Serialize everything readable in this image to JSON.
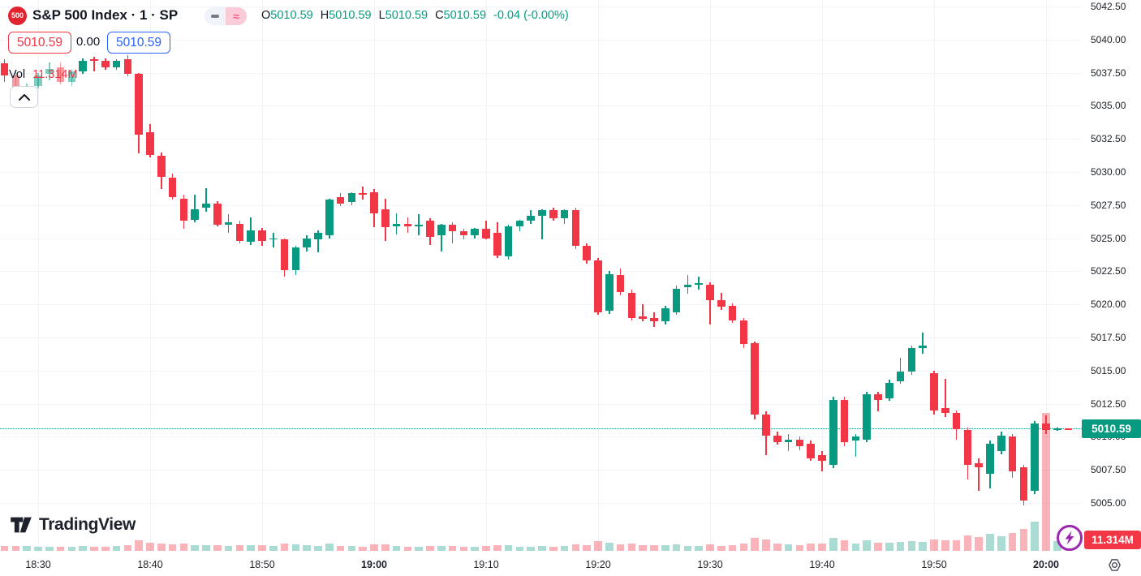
{
  "header": {
    "symbol_badge": "500",
    "title": "S&P 500 Index · 1 · SP",
    "ohlc": {
      "o_label": "O",
      "o": "5010.59",
      "h_label": "H",
      "h": "5010.59",
      "l_label": "L",
      "l": "5010.59",
      "c_label": "C",
      "c": "5010.59",
      "change": "-0.04 (-0.00%)"
    },
    "sell_price": "5010.59",
    "spread": "0.00",
    "buy_price": "5010.59",
    "vol_label": "Vol",
    "vol_value": "11.314M"
  },
  "labels": {
    "current_price": "5010.59",
    "volume_badge": "11.314M"
  },
  "footer": {
    "logo_text": "TradingView"
  },
  "colors": {
    "up": "#089981",
    "down": "#f23645",
    "vol_up": "rgba(8,153,129,0.34)",
    "vol_down": "rgba(242,54,69,0.38)",
    "grid": "#f0f3f7",
    "text": "#131722",
    "accent_blue": "#2962ff",
    "price_line": "#089981",
    "badge_red": "#e0232e",
    "purple": "#9c27b0"
  },
  "chart_data": {
    "type": "candlestick",
    "title": "S&P 500 Index",
    "interval": "1 minute",
    "exchange": "SP",
    "current_price": 5010.59,
    "current_volume": "11.314M",
    "y_axis": {
      "min": 5004.0,
      "max": 5043.0,
      "tick_step": 2.5,
      "grid": true
    },
    "price_ticks": [
      "5042.50",
      "5040.00",
      "5037.50",
      "5035.00",
      "5032.50",
      "5030.00",
      "5027.50",
      "5025.00",
      "5022.50",
      "5020.00",
      "5017.50",
      "5015.00",
      "5012.50",
      "5010.00",
      "5007.50",
      "5005.00"
    ],
    "time_ticks": [
      {
        "label": "18:30",
        "idx": 3,
        "bold": false
      },
      {
        "label": "18:40",
        "idx": 13,
        "bold": false
      },
      {
        "label": "18:50",
        "idx": 23,
        "bold": false
      },
      {
        "label": "19:00",
        "idx": 33,
        "bold": true
      },
      {
        "label": "19:10",
        "idx": 43,
        "bold": false
      },
      {
        "label": "19:20",
        "idx": 53,
        "bold": false
      },
      {
        "label": "19:30",
        "idx": 63,
        "bold": false
      },
      {
        "label": "19:40",
        "idx": 73,
        "bold": false
      },
      {
        "label": "19:50",
        "idx": 83,
        "bold": false
      },
      {
        "label": "20:00",
        "idx": 93,
        "bold": true
      }
    ],
    "faded_candles": [
      1,
      2,
      3,
      4,
      5,
      6
    ],
    "candles": [
      {
        "t": "18:27",
        "o": 5038.2,
        "h": 5038.5,
        "l": 5036.8,
        "c": 5037.3,
        "v": 0.42
      },
      {
        "t": "18:28",
        "o": 5037.3,
        "h": 5037.7,
        "l": 5035.9,
        "c": 5036.1,
        "v": 0.38
      },
      {
        "t": "18:29",
        "o": 5036.1,
        "h": 5036.7,
        "l": 5035.3,
        "c": 5036.5,
        "v": 0.4
      },
      {
        "t": "18:30",
        "o": 5036.5,
        "h": 5037.5,
        "l": 5036.3,
        "c": 5037.3,
        "v": 0.35
      },
      {
        "t": "18:31",
        "o": 5037.4,
        "h": 5038.3,
        "l": 5036.9,
        "c": 5037.8,
        "v": 0.33
      },
      {
        "t": "18:32",
        "o": 5037.9,
        "h": 5038.3,
        "l": 5036.6,
        "c": 5036.8,
        "v": 0.36
      },
      {
        "t": "18:33",
        "o": 5036.8,
        "h": 5037.8,
        "l": 5036.5,
        "c": 5037.6,
        "v": 0.34
      },
      {
        "t": "18:34",
        "o": 5037.6,
        "h": 5038.6,
        "l": 5037.4,
        "c": 5038.4,
        "v": 0.4
      },
      {
        "t": "18:35",
        "o": 5038.5,
        "h": 5038.7,
        "l": 5037.6,
        "c": 5038.4,
        "v": 0.32
      },
      {
        "t": "18:36",
        "o": 5038.4,
        "h": 5038.6,
        "l": 5037.7,
        "c": 5037.9,
        "v": 0.35
      },
      {
        "t": "18:37",
        "o": 5037.9,
        "h": 5038.5,
        "l": 5037.7,
        "c": 5038.4,
        "v": 0.37
      },
      {
        "t": "18:38",
        "o": 5038.5,
        "h": 5038.8,
        "l": 5037.2,
        "c": 5037.4,
        "v": 0.45
      },
      {
        "t": "18:39",
        "o": 5037.4,
        "h": 5037.5,
        "l": 5031.4,
        "c": 5032.8,
        "v": 0.85
      },
      {
        "t": "18:40",
        "o": 5033.0,
        "h": 5033.6,
        "l": 5031.1,
        "c": 5031.3,
        "v": 0.65
      },
      {
        "t": "18:41",
        "o": 5031.2,
        "h": 5031.5,
        "l": 5028.7,
        "c": 5029.6,
        "v": 0.6
      },
      {
        "t": "18:42",
        "o": 5029.6,
        "h": 5029.9,
        "l": 5027.9,
        "c": 5028.1,
        "v": 0.55
      },
      {
        "t": "18:43",
        "o": 5028.0,
        "h": 5028.3,
        "l": 5025.7,
        "c": 5026.3,
        "v": 0.58
      },
      {
        "t": "18:44",
        "o": 5026.4,
        "h": 5028.3,
        "l": 5026.2,
        "c": 5027.2,
        "v": 0.5
      },
      {
        "t": "18:45",
        "o": 5027.3,
        "h": 5028.8,
        "l": 5027.0,
        "c": 5027.6,
        "v": 0.45
      },
      {
        "t": "18:46",
        "o": 5027.6,
        "h": 5027.8,
        "l": 5025.9,
        "c": 5026.0,
        "v": 0.48
      },
      {
        "t": "18:47",
        "o": 5026.0,
        "h": 5026.8,
        "l": 5025.4,
        "c": 5026.2,
        "v": 0.42
      },
      {
        "t": "18:48",
        "o": 5026.1,
        "h": 5026.3,
        "l": 5024.6,
        "c": 5024.8,
        "v": 0.5
      },
      {
        "t": "18:49",
        "o": 5024.7,
        "h": 5026.6,
        "l": 5024.5,
        "c": 5025.6,
        "v": 0.44
      },
      {
        "t": "18:50",
        "o": 5025.6,
        "h": 5025.8,
        "l": 5024.4,
        "c": 5024.8,
        "v": 0.46
      },
      {
        "t": "18:51",
        "o": 5024.9,
        "h": 5025.4,
        "l": 5024.3,
        "c": 5025.0,
        "v": 0.4
      },
      {
        "t": "18:52",
        "o": 5024.9,
        "h": 5025.0,
        "l": 5022.1,
        "c": 5022.6,
        "v": 0.62
      },
      {
        "t": "18:53",
        "o": 5022.6,
        "h": 5024.4,
        "l": 5022.2,
        "c": 5024.3,
        "v": 0.55
      },
      {
        "t": "18:54",
        "o": 5024.3,
        "h": 5025.2,
        "l": 5024.0,
        "c": 5025.0,
        "v": 0.45
      },
      {
        "t": "18:55",
        "o": 5024.9,
        "h": 5025.6,
        "l": 5023.9,
        "c": 5025.4,
        "v": 0.42
      },
      {
        "t": "18:56",
        "o": 5025.2,
        "h": 5028.0,
        "l": 5025.0,
        "c": 5027.9,
        "v": 0.6
      },
      {
        "t": "18:57",
        "o": 5028.1,
        "h": 5028.4,
        "l": 5027.4,
        "c": 5027.6,
        "v": 0.4
      },
      {
        "t": "18:58",
        "o": 5027.7,
        "h": 5028.5,
        "l": 5027.5,
        "c": 5028.4,
        "v": 0.38
      },
      {
        "t": "18:59",
        "o": 5028.4,
        "h": 5028.9,
        "l": 5027.9,
        "c": 5028.3,
        "v": 0.36
      },
      {
        "t": "19:00",
        "o": 5028.5,
        "h": 5028.7,
        "l": 5025.8,
        "c": 5026.9,
        "v": 0.55
      },
      {
        "t": "19:01",
        "o": 5027.2,
        "h": 5028.0,
        "l": 5024.8,
        "c": 5025.8,
        "v": 0.52
      },
      {
        "t": "19:02",
        "o": 5025.9,
        "h": 5026.9,
        "l": 5025.3,
        "c": 5026.1,
        "v": 0.38
      },
      {
        "t": "19:03",
        "o": 5026.1,
        "h": 5026.6,
        "l": 5025.4,
        "c": 5025.9,
        "v": 0.36
      },
      {
        "t": "19:04",
        "o": 5025.9,
        "h": 5026.8,
        "l": 5025.2,
        "c": 5026.0,
        "v": 0.35
      },
      {
        "t": "19:05",
        "o": 5026.3,
        "h": 5026.5,
        "l": 5024.5,
        "c": 5025.1,
        "v": 0.42
      },
      {
        "t": "19:06",
        "o": 5025.2,
        "h": 5026.1,
        "l": 5024.0,
        "c": 5026.0,
        "v": 0.4
      },
      {
        "t": "19:07",
        "o": 5026.0,
        "h": 5026.2,
        "l": 5024.6,
        "c": 5025.5,
        "v": 0.38
      },
      {
        "t": "19:08",
        "o": 5025.5,
        "h": 5025.7,
        "l": 5024.9,
        "c": 5025.2,
        "v": 0.33
      },
      {
        "t": "19:09",
        "o": 5025.2,
        "h": 5025.8,
        "l": 5025.0,
        "c": 5025.7,
        "v": 0.32
      },
      {
        "t": "19:10",
        "o": 5025.7,
        "h": 5026.3,
        "l": 5024.9,
        "c": 5025.0,
        "v": 0.4
      },
      {
        "t": "19:11",
        "o": 5025.4,
        "h": 5026.2,
        "l": 5023.5,
        "c": 5023.7,
        "v": 0.48
      },
      {
        "t": "19:12",
        "o": 5023.6,
        "h": 5026.0,
        "l": 5023.4,
        "c": 5025.9,
        "v": 0.5
      },
      {
        "t": "19:13",
        "o": 5025.9,
        "h": 5026.4,
        "l": 5025.5,
        "c": 5026.3,
        "v": 0.36
      },
      {
        "t": "19:14",
        "o": 5026.3,
        "h": 5027.1,
        "l": 5026.1,
        "c": 5026.7,
        "v": 0.34
      },
      {
        "t": "19:15",
        "o": 5026.7,
        "h": 5027.2,
        "l": 5024.9,
        "c": 5027.1,
        "v": 0.38
      },
      {
        "t": "19:16",
        "o": 5027.1,
        "h": 5027.3,
        "l": 5026.3,
        "c": 5026.5,
        "v": 0.35
      },
      {
        "t": "19:17",
        "o": 5026.5,
        "h": 5027.2,
        "l": 5026.1,
        "c": 5027.1,
        "v": 0.37
      },
      {
        "t": "19:18",
        "o": 5027.1,
        "h": 5027.3,
        "l": 5024.2,
        "c": 5024.4,
        "v": 0.55
      },
      {
        "t": "19:19",
        "o": 5024.4,
        "h": 5024.6,
        "l": 5023.1,
        "c": 5023.3,
        "v": 0.5
      },
      {
        "t": "19:20",
        "o": 5023.3,
        "h": 5023.5,
        "l": 5019.2,
        "c": 5019.4,
        "v": 0.8
      },
      {
        "t": "19:21",
        "o": 5019.5,
        "h": 5022.5,
        "l": 5019.3,
        "c": 5022.3,
        "v": 0.65
      },
      {
        "t": "19:22",
        "o": 5022.2,
        "h": 5022.7,
        "l": 5020.7,
        "c": 5020.9,
        "v": 0.55
      },
      {
        "t": "19:23",
        "o": 5020.9,
        "h": 5021.1,
        "l": 5018.8,
        "c": 5019.0,
        "v": 0.6
      },
      {
        "t": "19:24",
        "o": 5019.1,
        "h": 5020.0,
        "l": 5018.7,
        "c": 5018.9,
        "v": 0.48
      },
      {
        "t": "19:25",
        "o": 5019.0,
        "h": 5019.4,
        "l": 5018.3,
        "c": 5018.7,
        "v": 0.45
      },
      {
        "t": "19:26",
        "o": 5018.7,
        "h": 5019.9,
        "l": 5018.5,
        "c": 5019.7,
        "v": 0.44
      },
      {
        "t": "19:27",
        "o": 5019.4,
        "h": 5021.4,
        "l": 5019.2,
        "c": 5021.2,
        "v": 0.52
      },
      {
        "t": "19:28",
        "o": 5021.3,
        "h": 5022.2,
        "l": 5020.8,
        "c": 5021.5,
        "v": 0.4
      },
      {
        "t": "19:29",
        "o": 5021.5,
        "h": 5022.1,
        "l": 5021.1,
        "c": 5021.6,
        "v": 0.38
      },
      {
        "t": "19:30",
        "o": 5021.5,
        "h": 5021.7,
        "l": 5018.5,
        "c": 5020.3,
        "v": 0.55
      },
      {
        "t": "19:31",
        "o": 5020.3,
        "h": 5020.9,
        "l": 5019.6,
        "c": 5019.8,
        "v": 0.42
      },
      {
        "t": "19:32",
        "o": 5019.9,
        "h": 5020.1,
        "l": 5018.6,
        "c": 5018.8,
        "v": 0.5
      },
      {
        "t": "19:33",
        "o": 5018.8,
        "h": 5019.0,
        "l": 5016.7,
        "c": 5017.0,
        "v": 0.62
      },
      {
        "t": "19:34",
        "o": 5017.1,
        "h": 5017.2,
        "l": 5011.3,
        "c": 5011.7,
        "v": 1.1
      },
      {
        "t": "19:35",
        "o": 5011.7,
        "h": 5011.9,
        "l": 5008.6,
        "c": 5010.1,
        "v": 0.95
      },
      {
        "t": "19:36",
        "o": 5010.1,
        "h": 5010.4,
        "l": 5009.4,
        "c": 5009.6,
        "v": 0.6
      },
      {
        "t": "19:37",
        "o": 5009.6,
        "h": 5010.2,
        "l": 5008.9,
        "c": 5009.8,
        "v": 0.55
      },
      {
        "t": "19:38",
        "o": 5009.8,
        "h": 5010.0,
        "l": 5009.0,
        "c": 5009.3,
        "v": 0.5
      },
      {
        "t": "19:39",
        "o": 5009.5,
        "h": 5009.7,
        "l": 5008.2,
        "c": 5008.4,
        "v": 0.58
      },
      {
        "t": "19:40",
        "o": 5008.6,
        "h": 5008.9,
        "l": 5007.4,
        "c": 5008.2,
        "v": 0.62
      },
      {
        "t": "19:41",
        "o": 5007.9,
        "h": 5013.0,
        "l": 5007.6,
        "c": 5012.8,
        "v": 1.05
      },
      {
        "t": "19:42",
        "o": 5012.8,
        "h": 5013.0,
        "l": 5009.3,
        "c": 5009.6,
        "v": 0.85
      },
      {
        "t": "19:43",
        "o": 5009.7,
        "h": 5010.2,
        "l": 5008.5,
        "c": 5010.0,
        "v": 0.6
      },
      {
        "t": "19:44",
        "o": 5009.8,
        "h": 5013.4,
        "l": 5009.6,
        "c": 5013.2,
        "v": 0.9
      },
      {
        "t": "19:45",
        "o": 5013.2,
        "h": 5013.4,
        "l": 5011.9,
        "c": 5012.8,
        "v": 0.65
      },
      {
        "t": "19:46",
        "o": 5012.9,
        "h": 5014.3,
        "l": 5012.7,
        "c": 5014.1,
        "v": 0.7
      },
      {
        "t": "19:47",
        "o": 5014.2,
        "h": 5016.0,
        "l": 5014.0,
        "c": 5014.9,
        "v": 0.75
      },
      {
        "t": "19:48",
        "o": 5014.9,
        "h": 5016.9,
        "l": 5014.7,
        "c": 5016.7,
        "v": 0.8
      },
      {
        "t": "19:49",
        "o": 5016.7,
        "h": 5017.9,
        "l": 5016.3,
        "c": 5016.9,
        "v": 0.72
      },
      {
        "t": "19:50",
        "o": 5014.8,
        "h": 5015.0,
        "l": 5011.7,
        "c": 5012.0,
        "v": 0.95
      },
      {
        "t": "19:51",
        "o": 5012.2,
        "h": 5014.4,
        "l": 5011.5,
        "c": 5011.8,
        "v": 0.85
      },
      {
        "t": "19:52",
        "o": 5011.8,
        "h": 5012.0,
        "l": 5009.8,
        "c": 5010.6,
        "v": 0.9
      },
      {
        "t": "19:53",
        "o": 5010.5,
        "h": 5010.7,
        "l": 5006.8,
        "c": 5007.9,
        "v": 1.3
      },
      {
        "t": "19:54",
        "o": 5008.0,
        "h": 5008.4,
        "l": 5005.9,
        "c": 5007.7,
        "v": 1.15
      },
      {
        "t": "19:55",
        "o": 5007.2,
        "h": 5009.7,
        "l": 5006.1,
        "c": 5009.5,
        "v": 1.4
      },
      {
        "t": "19:56",
        "o": 5008.9,
        "h": 5010.4,
        "l": 5008.7,
        "c": 5010.1,
        "v": 1.2
      },
      {
        "t": "19:57",
        "o": 5010.0,
        "h": 5010.2,
        "l": 5006.9,
        "c": 5007.4,
        "v": 1.5
      },
      {
        "t": "19:58",
        "o": 5007.7,
        "h": 5007.9,
        "l": 5004.8,
        "c": 5005.2,
        "v": 1.8
      },
      {
        "t": "19:59",
        "o": 5005.9,
        "h": 5011.2,
        "l": 5005.7,
        "c": 5011.0,
        "v": 2.4
      },
      {
        "t": "20:00",
        "o": 5011.0,
        "h": 5011.6,
        "l": 5010.2,
        "c": 5010.5,
        "v": 11.314
      },
      {
        "t": "20:01",
        "o": 5010.55,
        "h": 5010.7,
        "l": 5010.45,
        "c": 5010.62,
        "v": 0.8
      },
      {
        "t": "20:02",
        "o": 5010.62,
        "h": 5010.66,
        "l": 5010.55,
        "c": 5010.59,
        "v": 0.45
      }
    ]
  }
}
